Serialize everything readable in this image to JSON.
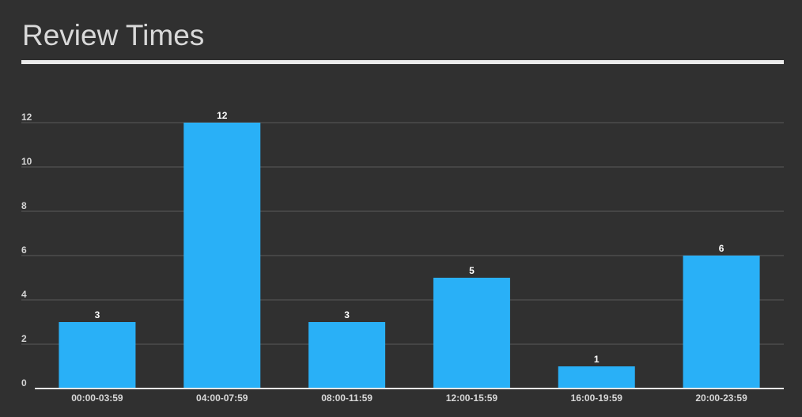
{
  "title": "Review Times",
  "colors": {
    "background": "#303030",
    "bar": "#29b0f7",
    "grid": "#5a5a5a",
    "baseline": "#e8e8e8",
    "text": "#d9d9d9"
  },
  "chart_data": {
    "type": "bar",
    "title": "Review Times",
    "xlabel": "",
    "ylabel": "",
    "categories": [
      "00:00-03:59",
      "04:00-07:59",
      "08:00-11:59",
      "12:00-15:59",
      "16:00-19:59",
      "20:00-23:59"
    ],
    "values": [
      3,
      12,
      3,
      5,
      1,
      6
    ],
    "ylim": [
      0,
      12
    ],
    "yticks": [
      0,
      2,
      4,
      6,
      8,
      10,
      12
    ],
    "grid": true,
    "legend": "none",
    "data_labels": true
  }
}
